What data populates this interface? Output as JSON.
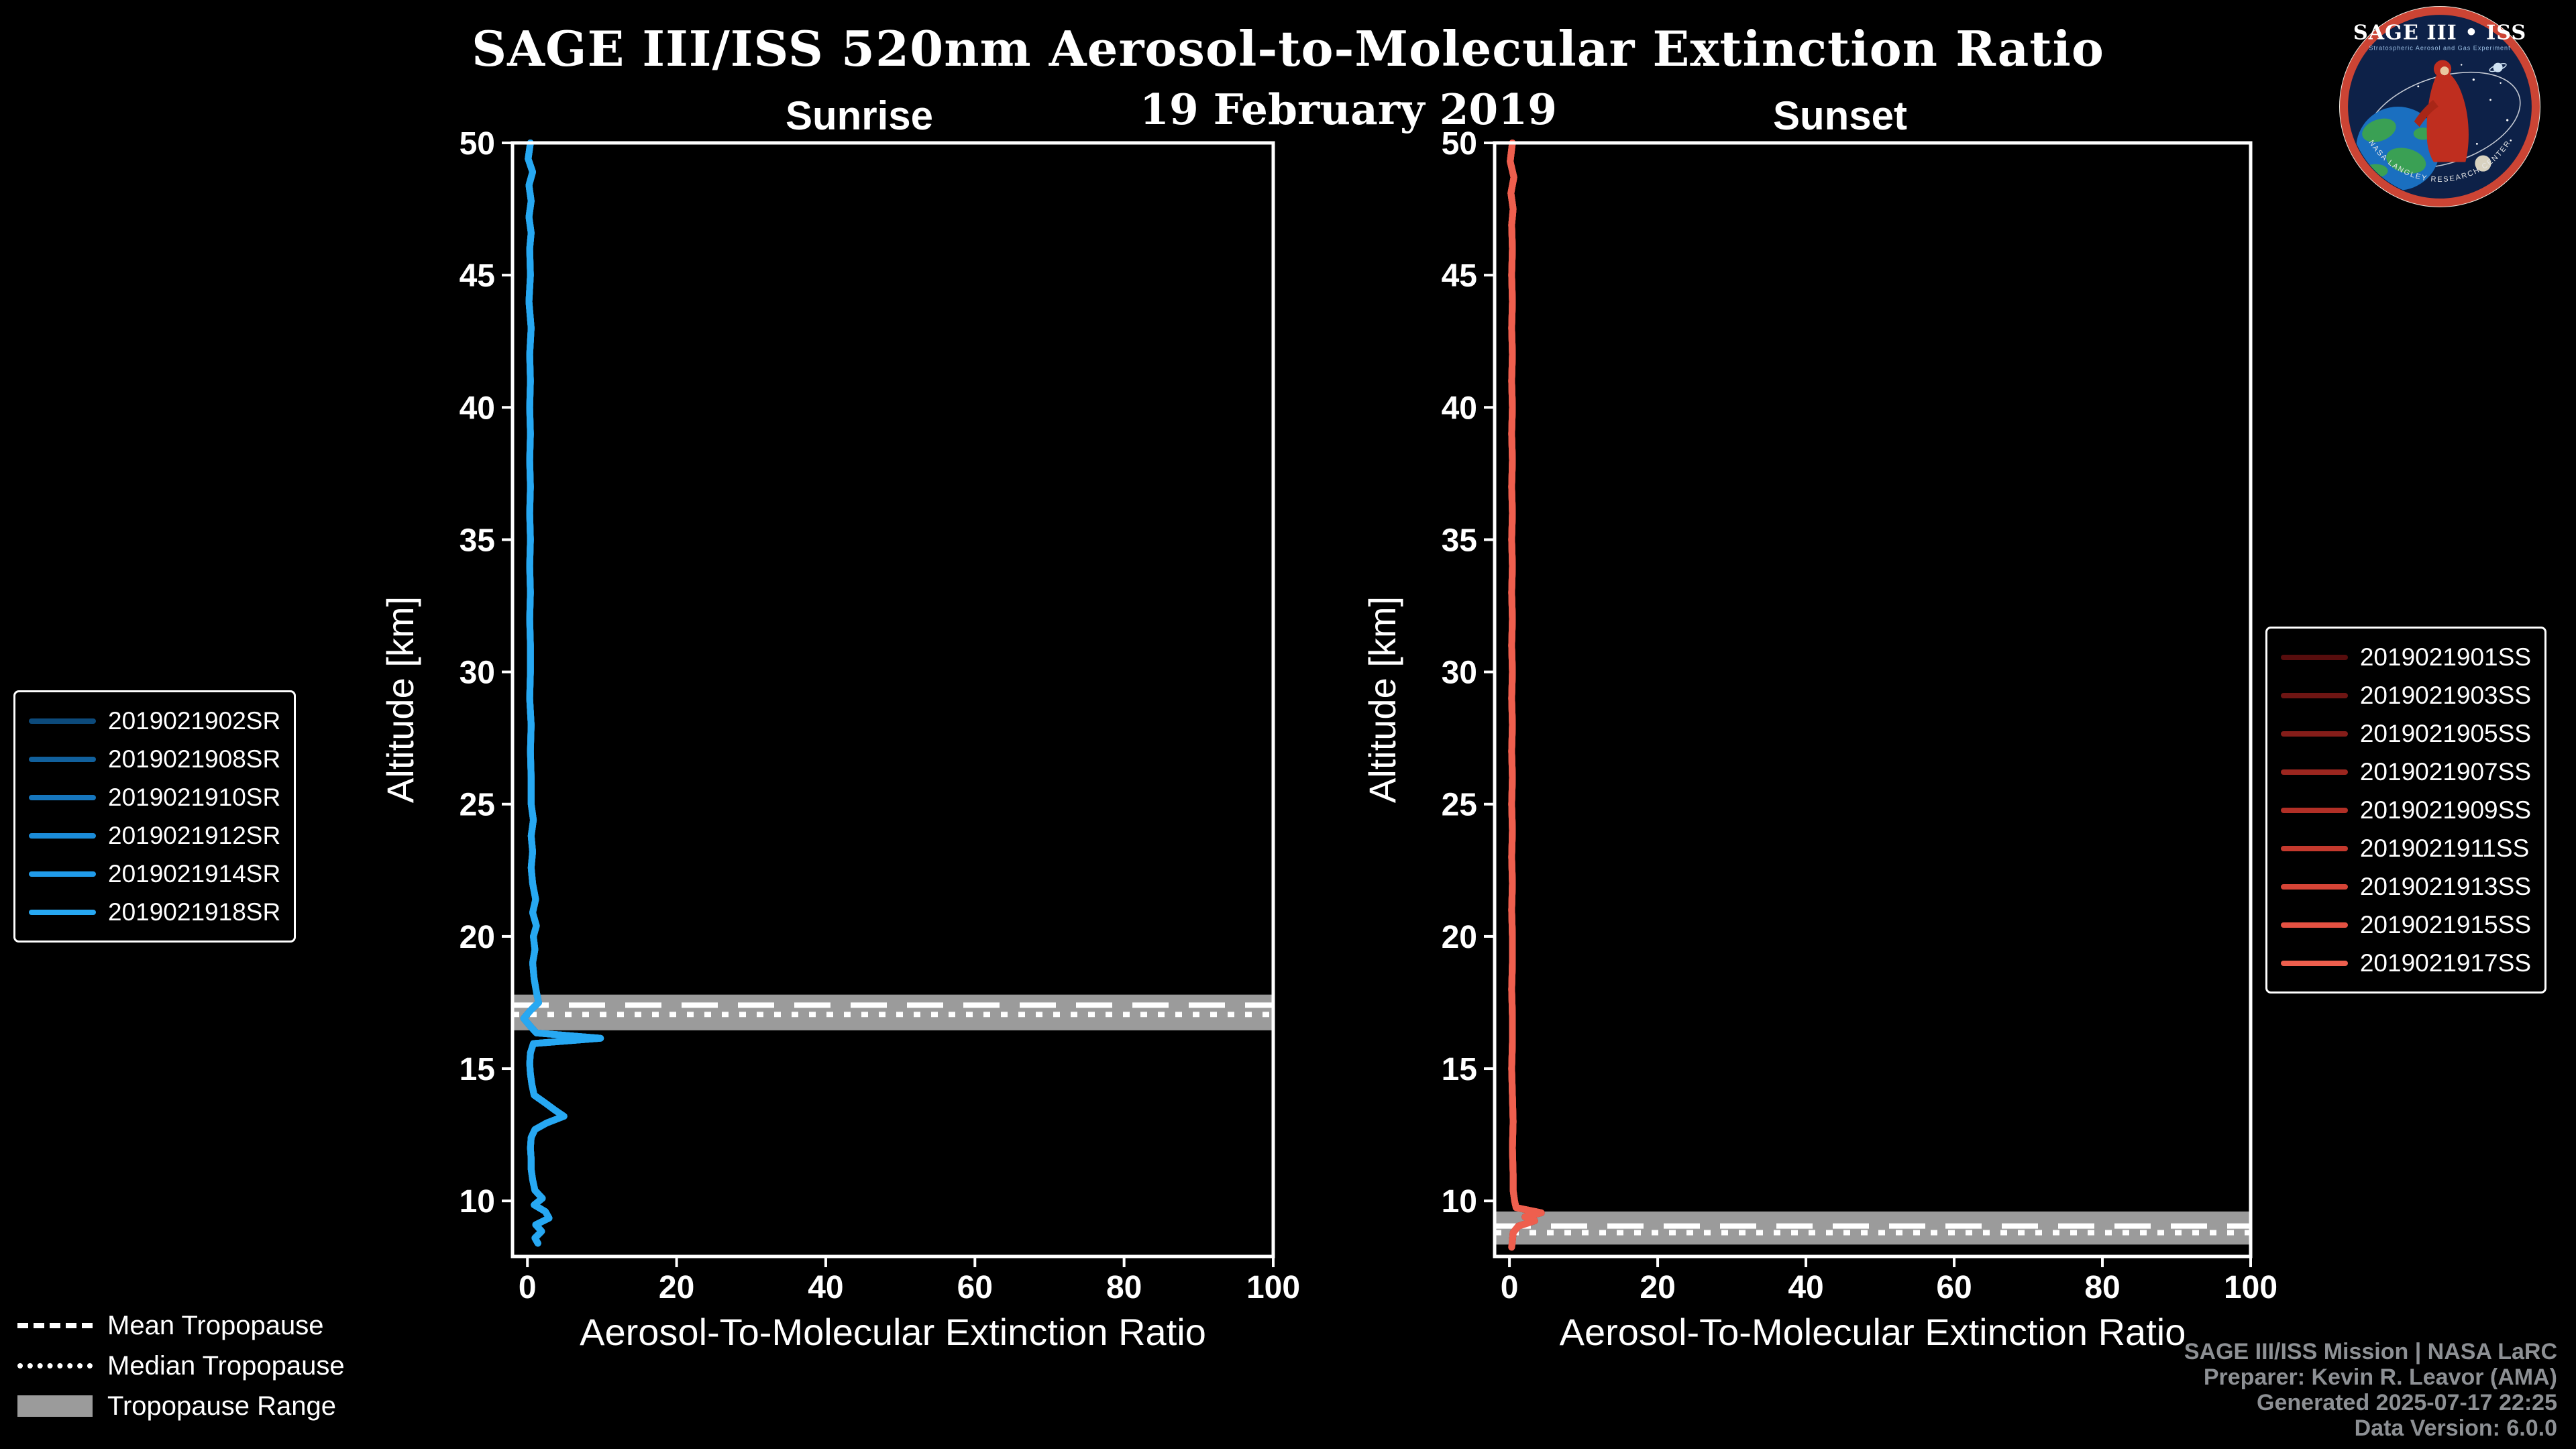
{
  "header": {
    "title": "SAGE III/ISS 520nm Aerosol-to-Molecular Extinction Ratio",
    "date": "19 February 2019"
  },
  "logo": {
    "title": "SAGE III • ISS",
    "subtitle": "Stratospheric Aerosol and Gas Experiment",
    "footer": "NASA LANGLEY RESEARCH CENTER"
  },
  "tropopause_legend": {
    "mean": "Mean Tropopause",
    "median": "Median Tropopause",
    "range": "Tropopause Range"
  },
  "credits": {
    "line1": "SAGE III/ISS Mission | NASA LaRC",
    "line2": "Preparer: Kevin R. Leavor (AMA)",
    "line3": "Generated 2025-07-17 22:25",
    "line4": "Data Version: 6.0.0"
  },
  "chart_data": [
    {
      "type": "line",
      "title": "Sunrise",
      "xlabel": "Aerosol-To-Molecular Extinction Ratio",
      "ylabel": "Altitude [km]",
      "xlim": [
        -2,
        100
      ],
      "ylim": [
        7.9,
        50
      ],
      "xticks": [
        0,
        20,
        40,
        60,
        80,
        100
      ],
      "yticks": [
        10,
        15,
        20,
        25,
        30,
        35,
        40,
        45,
        50
      ],
      "grid": false,
      "legend_position": "left",
      "series": [
        {
          "name": "2019021902SR",
          "color": "#0c4a7b"
        },
        {
          "name": "2019021908SR",
          "color": "#11609c"
        },
        {
          "name": "2019021910SR",
          "color": "#1676bd"
        },
        {
          "name": "2019021912SR",
          "color": "#1b8cd9"
        },
        {
          "name": "2019021914SR",
          "color": "#209bea"
        },
        {
          "name": "2019021918SR",
          "color": "#27a8f2"
        }
      ],
      "profile_points": [
        [
          50,
          0.4
        ],
        [
          49.4,
          0.1
        ],
        [
          48.9,
          0.7
        ],
        [
          48.4,
          0.2
        ],
        [
          47.8,
          0.5
        ],
        [
          47.2,
          0.2
        ],
        [
          46.6,
          0.5
        ],
        [
          46,
          0.3
        ],
        [
          45,
          0.4
        ],
        [
          44,
          0.2
        ],
        [
          43,
          0.5
        ],
        [
          42,
          0.3
        ],
        [
          41,
          0.4
        ],
        [
          40,
          0.3
        ],
        [
          39,
          0.4
        ],
        [
          38,
          0.3
        ],
        [
          37,
          0.4
        ],
        [
          36,
          0.3
        ],
        [
          35,
          0.4
        ],
        [
          34,
          0.3
        ],
        [
          33,
          0.4
        ],
        [
          32,
          0.3
        ],
        [
          31,
          0.4
        ],
        [
          30,
          0.4
        ],
        [
          29,
          0.3
        ],
        [
          28,
          0.5
        ],
        [
          27,
          0.4
        ],
        [
          26,
          0.5
        ],
        [
          25,
          0.5
        ],
        [
          24.4,
          0.8
        ],
        [
          23.8,
          0.5
        ],
        [
          23.2,
          0.7
        ],
        [
          22.6,
          0.5
        ],
        [
          22,
          0.7
        ],
        [
          21.4,
          1.1
        ],
        [
          20.9,
          0.7
        ],
        [
          20.4,
          1.2
        ],
        [
          20,
          0.8
        ],
        [
          19.5,
          1.0
        ],
        [
          19,
          0.7
        ],
        [
          18.4,
          0.9
        ],
        [
          17.9,
          1.2
        ],
        [
          17.5,
          1.5
        ],
        [
          17.2,
          0.4
        ],
        [
          16.9,
          -0.5
        ],
        [
          16.6,
          0.4
        ],
        [
          16.35,
          1.2
        ],
        [
          16.15,
          9.8
        ],
        [
          15.95,
          0.8
        ],
        [
          15.6,
          0.4
        ],
        [
          15.2,
          0.3
        ],
        [
          14.8,
          0.4
        ],
        [
          14.4,
          0.6
        ],
        [
          14,
          0.9
        ],
        [
          13.7,
          2.4
        ],
        [
          13.45,
          3.6
        ],
        [
          13.2,
          4.9
        ],
        [
          12.95,
          2.6
        ],
        [
          12.7,
          1.0
        ],
        [
          12.4,
          0.5
        ],
        [
          12,
          0.4
        ],
        [
          11.6,
          0.5
        ],
        [
          11.2,
          0.5
        ],
        [
          10.8,
          0.7
        ],
        [
          10.4,
          1.0
        ],
        [
          10.1,
          2.0
        ],
        [
          9.85,
          0.9
        ],
        [
          9.6,
          2.4
        ],
        [
          9.35,
          2.9
        ],
        [
          9.1,
          1.1
        ],
        [
          8.85,
          1.9
        ],
        [
          8.6,
          1.0
        ],
        [
          8.4,
          1.4
        ]
      ],
      "tropopause": {
        "mean_km": 17.4,
        "median_km": 17.05,
        "range_km": [
          16.45,
          17.8
        ]
      }
    },
    {
      "type": "line",
      "title": "Sunset",
      "xlabel": "Aerosol-To-Molecular Extinction Ratio",
      "ylabel": "Altitude [km]",
      "xlim": [
        -2,
        100
      ],
      "ylim": [
        7.9,
        50
      ],
      "xticks": [
        0,
        20,
        40,
        60,
        80,
        100
      ],
      "yticks": [
        10,
        15,
        20,
        25,
        30,
        35,
        40,
        45,
        50
      ],
      "grid": false,
      "legend_position": "right",
      "series": [
        {
          "name": "2019021901SS",
          "color": "#570d0d"
        },
        {
          "name": "2019021903SS",
          "color": "#6e1513"
        },
        {
          "name": "2019021905SS",
          "color": "#851d19"
        },
        {
          "name": "2019021907SS",
          "color": "#9c261f"
        },
        {
          "name": "2019021909SS",
          "color": "#b12f26"
        },
        {
          "name": "2019021911SS",
          "color": "#c4392d"
        },
        {
          "name": "2019021913SS",
          "color": "#d54436"
        },
        {
          "name": "2019021915SS",
          "color": "#e45142"
        },
        {
          "name": "2019021917SS",
          "color": "#ee5f4e"
        }
      ],
      "profile_points": [
        [
          50,
          0.4
        ],
        [
          49.3,
          0.1
        ],
        [
          48.7,
          0.6
        ],
        [
          48.1,
          0.2
        ],
        [
          47.5,
          0.5
        ],
        [
          46.9,
          0.3
        ],
        [
          46,
          0.4
        ],
        [
          45,
          0.3
        ],
        [
          44,
          0.4
        ],
        [
          43,
          0.3
        ],
        [
          42,
          0.4
        ],
        [
          41,
          0.3
        ],
        [
          40,
          0.4
        ],
        [
          39,
          0.3
        ],
        [
          38,
          0.4
        ],
        [
          37,
          0.3
        ],
        [
          36,
          0.4
        ],
        [
          35,
          0.3
        ],
        [
          34,
          0.4
        ],
        [
          33,
          0.3
        ],
        [
          32,
          0.4
        ],
        [
          31,
          0.3
        ],
        [
          30,
          0.4
        ],
        [
          29,
          0.3
        ],
        [
          28,
          0.4
        ],
        [
          27,
          0.3
        ],
        [
          26,
          0.4
        ],
        [
          25,
          0.3
        ],
        [
          24,
          0.4
        ],
        [
          23,
          0.3
        ],
        [
          22,
          0.4
        ],
        [
          21,
          0.3
        ],
        [
          20,
          0.4
        ],
        [
          19,
          0.4
        ],
        [
          18,
          0.3
        ],
        [
          17,
          0.4
        ],
        [
          16,
          0.4
        ],
        [
          15,
          0.3
        ],
        [
          14,
          0.4
        ],
        [
          13,
          0.5
        ],
        [
          12,
          0.4
        ],
        [
          11,
          0.5
        ],
        [
          10.4,
          0.5
        ],
        [
          10,
          0.7
        ],
        [
          9.75,
          0.9
        ],
        [
          9.55,
          4.3
        ],
        [
          9.4,
          2.1
        ],
        [
          9.25,
          3.4
        ],
        [
          9.05,
          1.2
        ],
        [
          8.8,
          0.5
        ],
        [
          8.5,
          0.4
        ],
        [
          8.25,
          0.3
        ]
      ],
      "tropopause": {
        "mean_km": 9.05,
        "median_km": 8.8,
        "range_km": [
          8.35,
          9.6
        ]
      }
    }
  ]
}
